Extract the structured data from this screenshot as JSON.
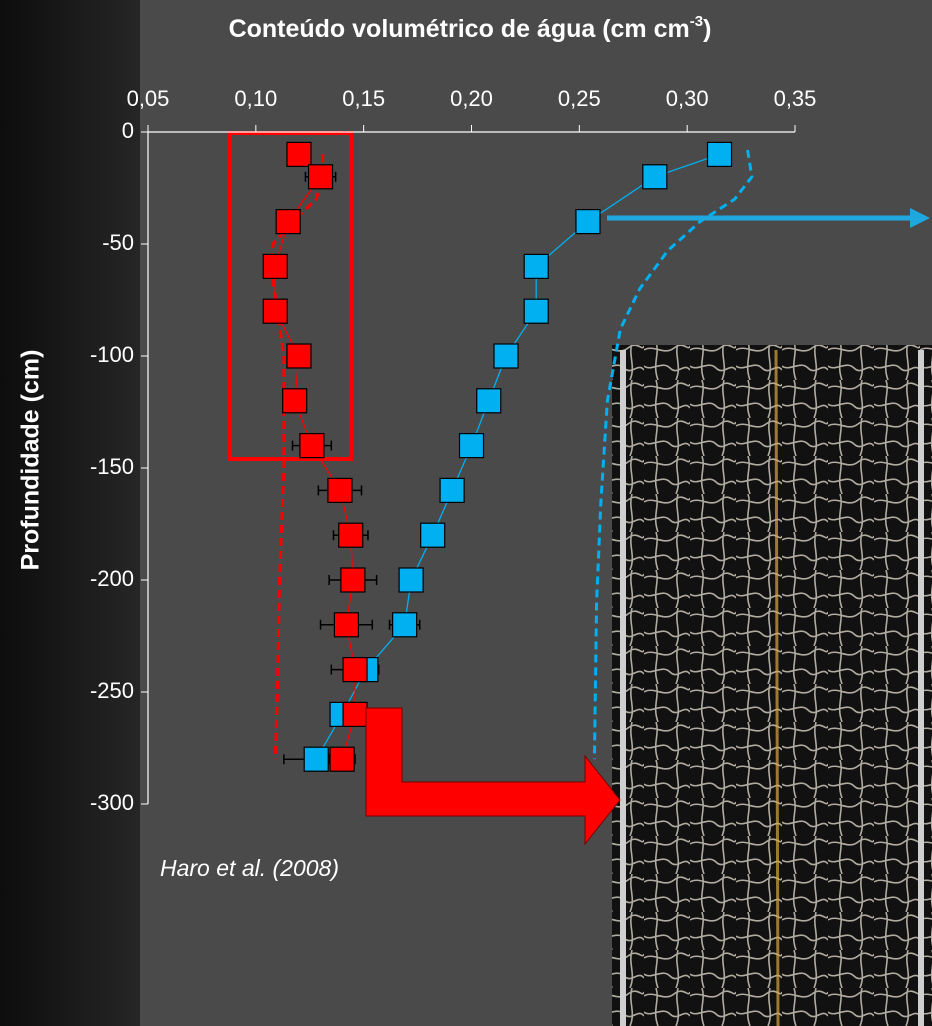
{
  "chart_data": {
    "type": "scatter",
    "title": {
      "text": "Conteúdo volumétrico de água (cm cm",
      "superscript": "-3",
      "suffix": ")"
    },
    "y_label": "Profundidade (cm)",
    "annotation": "Haro et al. (2008)",
    "xlim": [
      0.05,
      0.35
    ],
    "xticks": [
      {
        "value": 0.05,
        "label": "0,05"
      },
      {
        "value": 0.1,
        "label": "0,10"
      },
      {
        "value": 0.15,
        "label": "0,15"
      },
      {
        "value": 0.2,
        "label": "0,20"
      },
      {
        "value": 0.25,
        "label": "0,25"
      },
      {
        "value": 0.3,
        "label": "0,30"
      },
      {
        "value": 0.35,
        "label": "0,35"
      }
    ],
    "ylim": [
      -300,
      0
    ],
    "yticks": [
      0,
      -50,
      -100,
      -150,
      -200,
      -250,
      -300
    ],
    "series": [
      {
        "color": "#00b0f0",
        "marker": "square",
        "dashed": false,
        "x": [
          0.315,
          0.285,
          0.254,
          0.23,
          0.23,
          0.216,
          0.208,
          0.2,
          0.191,
          0.182,
          0.172,
          0.169,
          0.151,
          0.14,
          0.128
        ],
        "y": [
          -10,
          -20,
          -40,
          -60,
          -80,
          -100,
          -120,
          -140,
          -160,
          -180,
          -200,
          -220,
          -240,
          -260,
          -280
        ],
        "errors": [
          0,
          0.003,
          0,
          0,
          0,
          0,
          0,
          0.004,
          0.005,
          0.004,
          0.005,
          0.007,
          0.006,
          0.002,
          0.015
        ]
      },
      {
        "color": "#ff0000",
        "marker": "square",
        "dashed": false,
        "x": [
          0.12,
          0.13,
          0.115,
          0.109,
          0.109,
          0.12,
          0.118,
          0.126,
          0.139,
          0.144,
          0.145,
          0.142,
          0.146,
          0.146,
          0.14
        ],
        "y": [
          -10,
          -20,
          -40,
          -60,
          -80,
          -100,
          -120,
          -140,
          -160,
          -180,
          -200,
          -220,
          -240,
          -260,
          -280
        ],
        "errors": [
          0,
          0.007,
          0,
          0,
          0,
          0,
          0,
          0.009,
          0.01,
          0.008,
          0.011,
          0.012,
          0.011,
          0.004,
          0.006
        ]
      },
      {
        "color": "#00b0f0",
        "marker": "none",
        "dashed": true,
        "x": [
          0.328,
          0.33,
          0.322,
          0.306,
          0.291,
          0.278,
          0.269,
          0.263,
          0.26,
          0.258,
          0.257
        ],
        "y": [
          -8,
          -20,
          -30,
          -40,
          -53,
          -70,
          -88,
          -120,
          -165,
          -210,
          -280
        ]
      },
      {
        "color": "#ff0000",
        "marker": "none",
        "dashed": true,
        "x": [
          0.131,
          0.131,
          0.128,
          0.117,
          0.108,
          0.107,
          0.11,
          0.113,
          0.113,
          0.111,
          0.11,
          0.109
        ],
        "y": [
          -10,
          -20,
          -30,
          -40,
          -50,
          -60,
          -80,
          -100,
          -150,
          -200,
          -250,
          -280
        ]
      }
    ]
  }
}
